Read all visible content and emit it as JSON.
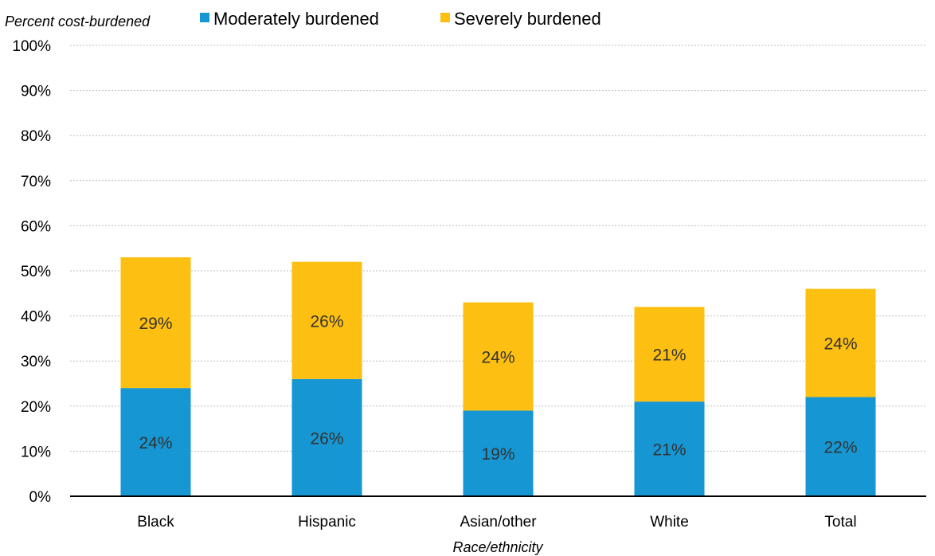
{
  "chart_data": {
    "type": "bar",
    "stacked": true,
    "categories": [
      "Black",
      "Hispanic",
      "Asian/other",
      "White",
      "Total"
    ],
    "series": [
      {
        "name": "Moderately burdened",
        "values": [
          24,
          26,
          19,
          21,
          22
        ],
        "labels": [
          "24%",
          "26%",
          "19%",
          "21%",
          "22%"
        ],
        "color": "#1696d2"
      },
      {
        "name": "Severely burdened",
        "values": [
          29,
          26,
          24,
          21,
          24
        ],
        "labels": [
          "29%",
          "26%",
          "24%",
          "21%",
          "24%"
        ],
        "color": "#fdbf11"
      }
    ],
    "ylabel": "Percent cost-burdened",
    "xlabel": "Race/ethnicity",
    "ylim": [
      0,
      100
    ],
    "yticks": [
      "0%",
      "10%",
      "20%",
      "30%",
      "40%",
      "50%",
      "60%",
      "70%",
      "80%",
      "90%",
      "100%"
    ],
    "grid": true,
    "legend_position": "top"
  }
}
